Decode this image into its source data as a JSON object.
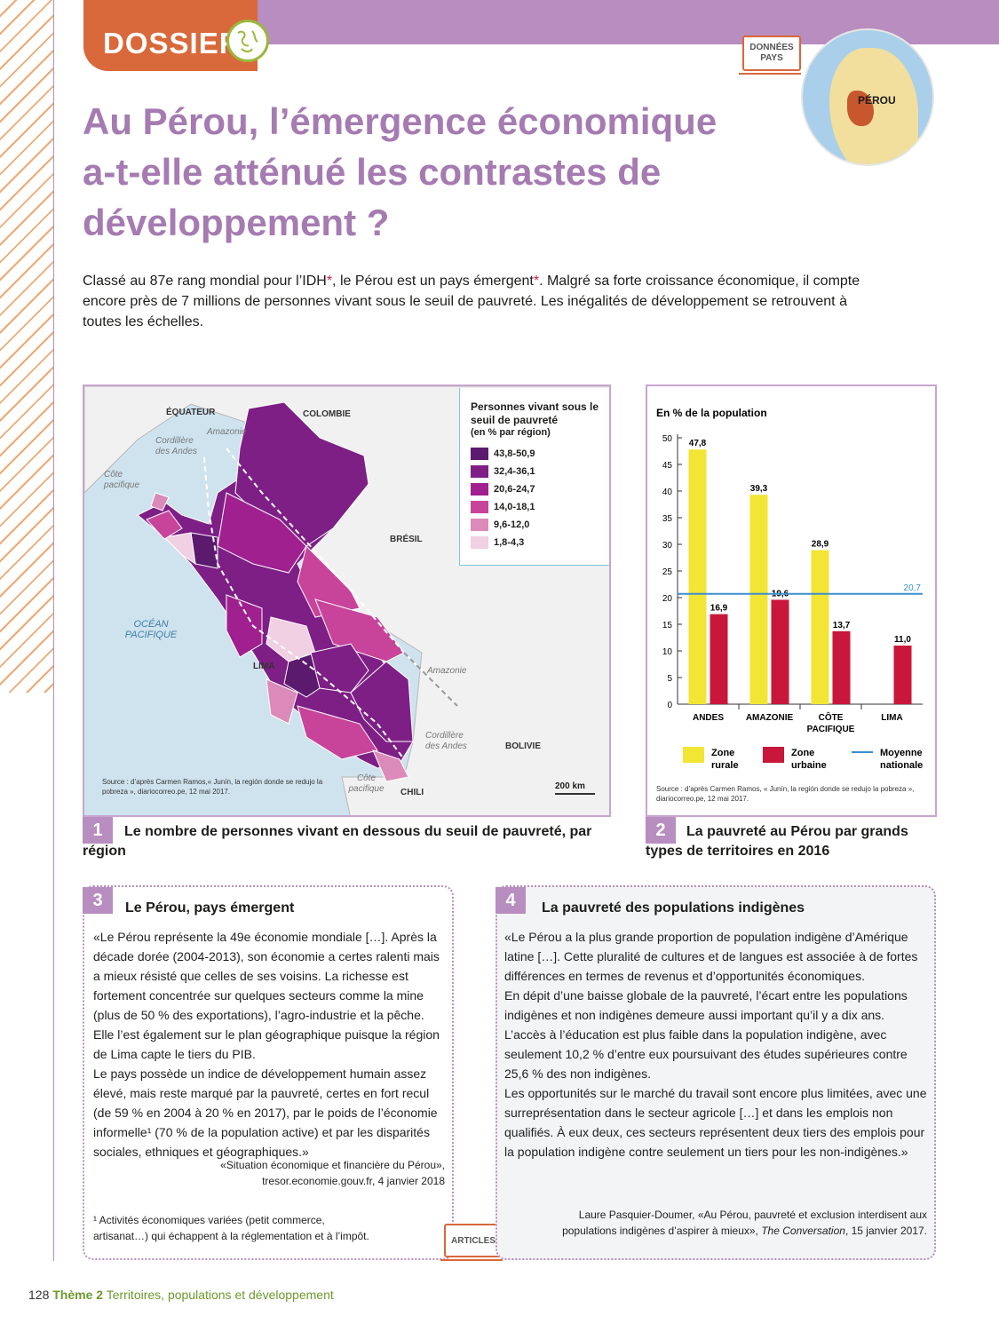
{
  "header": {
    "section_label": "DOSSIER",
    "tag_donnees": "DONNÉES PAYS",
    "locator_label": "PÉROU",
    "title": "Au Pérou, l’émergence économique a-t-elle atténué les contrastes de développement ?"
  },
  "intro": {
    "text_a": "Classé au 87e rang mondial pour l’IDH",
    "text_b": ", le Pérou est un pays émergent",
    "text_c": ". Malgré sa forte croissance économique, il compte encore près de 7 millions de personnes vivant sous le seuil de pauvreté. Les inégalités de développement se retrouvent à toutes les échelles.",
    "star": "*"
  },
  "map": {
    "legend_title": "Personnes vivant sous le seuil de pauvreté",
    "legend_subtitle": "(en % par région)",
    "legend_items": [
      {
        "label": "43,8-50,9",
        "color": "#5b1a6e"
      },
      {
        "label": "32,4-36,1",
        "color": "#7e1f86"
      },
      {
        "label": "20,6-24,7",
        "color": "#a0208f"
      },
      {
        "label": "14,0-18,1",
        "color": "#c8449a"
      },
      {
        "label": "9,6-12,0",
        "color": "#dc8ab9"
      },
      {
        "label": "1,8-4,3",
        "color": "#f0d0e2"
      }
    ],
    "labels": {
      "equateur": "ÉQUATEUR",
      "colombie": "COLOMBIE",
      "bresil": "BRÉSIL",
      "bolivie": "BOLIVIE",
      "chili": "CHILI",
      "lima": "LIMA",
      "ocean": "OCÉAN PACIFIQUE",
      "amazonie1": "Amazonie",
      "amazonie2": "Amazonie",
      "cordillere1": "Cordillère des Andes",
      "cordillere2": "Cordillère des Andes",
      "cote1": "Côte pacifique",
      "cote2": "Côte pacifique"
    },
    "source": "Source : d’après Carmen Ramos,« Junín, la región donde se redujo la pobreza », diariocorreo.pe, 12 mai 2017.",
    "scale": "200 km"
  },
  "captions": {
    "c1_num": "1",
    "c1_text": "Le nombre de personnes vivant en dessous du seuil de pauvreté, par région",
    "c2_num": "2",
    "c2_text": "La pauvreté au Pérou par grands types de territoires en 2016"
  },
  "chart_data": {
    "type": "bar",
    "ylabel": "En % de la population",
    "categories": [
      "ANDES",
      "AMAZONIE",
      "CÔTE PACIFIQUE",
      "LIMA"
    ],
    "series": [
      {
        "name": "Zone rurale",
        "color": "#f2e534",
        "values": [
          47.8,
          39.3,
          28.9,
          null
        ],
        "labels": [
          "47,8",
          "39,3",
          "28,9",
          ""
        ]
      },
      {
        "name": "Zone urbaine",
        "color": "#c8173a",
        "values": [
          16.9,
          19.6,
          13.7,
          11.0
        ],
        "labels": [
          "16,9",
          "19,6",
          "13,7",
          "11,0"
        ]
      }
    ],
    "reference_line": {
      "name": "Moyenne nationale",
      "value": 20.7,
      "label": "20,7",
      "color": "#3a8fcf"
    },
    "ylim": [
      0,
      50
    ],
    "yticks": [
      0,
      5,
      10,
      15,
      20,
      25,
      30,
      35,
      40,
      45,
      50
    ],
    "legend_labels": {
      "rural": "Zone rurale",
      "urbain": "Zone urbaine",
      "moyenne": "Moyenne nationale"
    },
    "source": "Source : d’après Carmen Ramos, « Junín, la región donde se redujo la pobreza », diariocorreo.pe, 12 mai 2017."
  },
  "doc3": {
    "num": "3",
    "title": "Le Pérou, pays émergent",
    "p1": "«Le Pérou représente la 49e économie mondiale […]. Après la décade dorée (2004-2013), son économie a certes ralenti mais a mieux résisté que celles de ses voisins. La richesse est fortement concentrée sur quelques secteurs comme la mine (plus de 50 % des exportations), l’agro-industrie et la pêche. Elle l’est également sur le plan géographique puisque la région de Lima capte le tiers du PIB.",
    "p2": "Le pays possède un indice de développement humain assez élevé, mais reste marqué par la pauvreté, certes en fort recul (de 59 % en 2004 à 20 % en 2017), par le poids de l’économie informelle¹ (70 % de la population active) et par les disparités sociales, ethniques et géographiques.»",
    "cite1": "«Situation économique et financière du Pérou»,",
    "cite2": "tresor.economie.gouv.fr, 4 janvier 2018",
    "note": "¹ Activités économiques variées (petit commerce, artisanat…) qui échappent à la réglementation et à l’impôt."
  },
  "doc4": {
    "num": "4",
    "title": "La pauvreté des populations indigènes",
    "p1": "«Le Pérou a la plus grande proportion de population indigène d’Amérique latine […]. Cette pluralité de cultures et de langues est associée à de fortes différences en termes de revenus et d’opportunités économiques.",
    "p2": "En dépit d’une baisse globale de la pauvreté, l’écart entre les populations indigènes et non indigènes demeure aussi important qu’il y a dix ans. L’accès à l’éducation est plus faible dans la population indigène, avec seulement 10,2 % d’entre eux poursuivant des études supérieures contre 25,6 % des non indigènes.",
    "p3": "Les opportunités sur le marché du travail sont encore plus limitées, avec une surreprésentation dans le secteur agricole […] et dans les emplois non qualifiés. À eux deux, ces secteurs représentent deux tiers des emplois pour la population indigène contre seulement un tiers pour les non-indigènes.»",
    "cite1": "Laure Pasquier-Doumer, «Au Pérou, pauvreté et exclusion interdisent aux",
    "cite2a": "populations indigènes d’aspirer à mieux», ",
    "cite2b": "The Conversation",
    "cite2c": ", 15 janvier 2017."
  },
  "tag_articles": "ARTICLES",
  "footer": {
    "page": "128",
    "theme": "Thème 2",
    "title": "Territoires, populations et développement"
  }
}
